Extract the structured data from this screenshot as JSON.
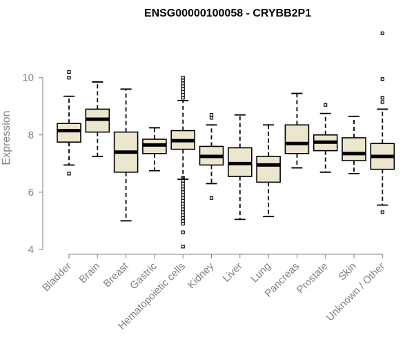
{
  "chart_data": {
    "type": "boxplot",
    "title": "ENSG00000100058 - CRYBB2P1",
    "xlabel": "",
    "ylabel": "Expression",
    "ylim": [
      4,
      11.75
    ],
    "yticks": [
      4,
      6,
      8,
      10
    ],
    "colors": {
      "box_fill": "#ede6cf",
      "stroke": "#000000",
      "axis": "#808080",
      "label": "#808080",
      "title": "#000000"
    },
    "categories": [
      "Bladder",
      "Brain",
      "Breast",
      "Gastric",
      "Hematopoietic cells",
      "Kidney",
      "Liver",
      "Lung",
      "Pancreas",
      "Prostate",
      "Skin",
      "Unknown / Other"
    ],
    "boxes": [
      {
        "name": "Bladder",
        "whisker_low": 6.95,
        "q1": 7.75,
        "median": 8.15,
        "q3": 8.4,
        "whisker_high": 9.35,
        "outliers": [
          6.65,
          10.0,
          10.2
        ]
      },
      {
        "name": "Brain",
        "whisker_low": 7.25,
        "q1": 8.1,
        "median": 8.55,
        "q3": 8.9,
        "whisker_high": 9.85,
        "outliers": []
      },
      {
        "name": "Breast",
        "whisker_low": 5.0,
        "q1": 6.7,
        "median": 7.4,
        "q3": 8.1,
        "whisker_high": 9.6,
        "outliers": []
      },
      {
        "name": "Gastric",
        "whisker_low": 6.75,
        "q1": 7.35,
        "median": 7.65,
        "q3": 7.85,
        "whisker_high": 8.25,
        "outliers": []
      },
      {
        "name": "Hematopoietic cells",
        "whisker_low": 6.45,
        "q1": 7.5,
        "median": 7.8,
        "q3": 8.15,
        "whisker_high": 9.2,
        "outliers": [
          4.1,
          4.6,
          4.9,
          5.0,
          5.1,
          5.2,
          5.3,
          5.4,
          5.5,
          5.6,
          5.7,
          5.8,
          5.9,
          6.0,
          6.1,
          6.2,
          6.3,
          6.4,
          6.5,
          9.3,
          9.4,
          9.5,
          9.6,
          9.7,
          9.8,
          9.9,
          10.0
        ]
      },
      {
        "name": "Kidney",
        "whisker_low": 6.3,
        "q1": 6.95,
        "median": 7.25,
        "q3": 7.6,
        "whisker_high": 8.35,
        "outliers": [
          5.8,
          8.6,
          8.7
        ]
      },
      {
        "name": "Liver",
        "whisker_low": 5.05,
        "q1": 6.55,
        "median": 7.0,
        "q3": 7.55,
        "whisker_high": 8.7,
        "outliers": []
      },
      {
        "name": "Lung",
        "whisker_low": 5.15,
        "q1": 6.35,
        "median": 6.95,
        "q3": 7.25,
        "whisker_high": 8.35,
        "outliers": []
      },
      {
        "name": "Pancreas",
        "whisker_low": 6.85,
        "q1": 7.35,
        "median": 7.7,
        "q3": 8.35,
        "whisker_high": 9.45,
        "outliers": []
      },
      {
        "name": "Prostate",
        "whisker_low": 6.7,
        "q1": 7.45,
        "median": 7.75,
        "q3": 8.0,
        "whisker_high": 8.75,
        "outliers": [
          9.05
        ]
      },
      {
        "name": "Skin",
        "whisker_low": 6.65,
        "q1": 7.1,
        "median": 7.35,
        "q3": 7.9,
        "whisker_high": 8.65,
        "outliers": []
      },
      {
        "name": "Unknown / Other",
        "whisker_low": 5.55,
        "q1": 6.8,
        "median": 7.25,
        "q3": 7.7,
        "whisker_high": 8.9,
        "outliers": [
          5.3,
          9.15,
          9.3,
          9.95,
          11.55
        ]
      }
    ]
  }
}
